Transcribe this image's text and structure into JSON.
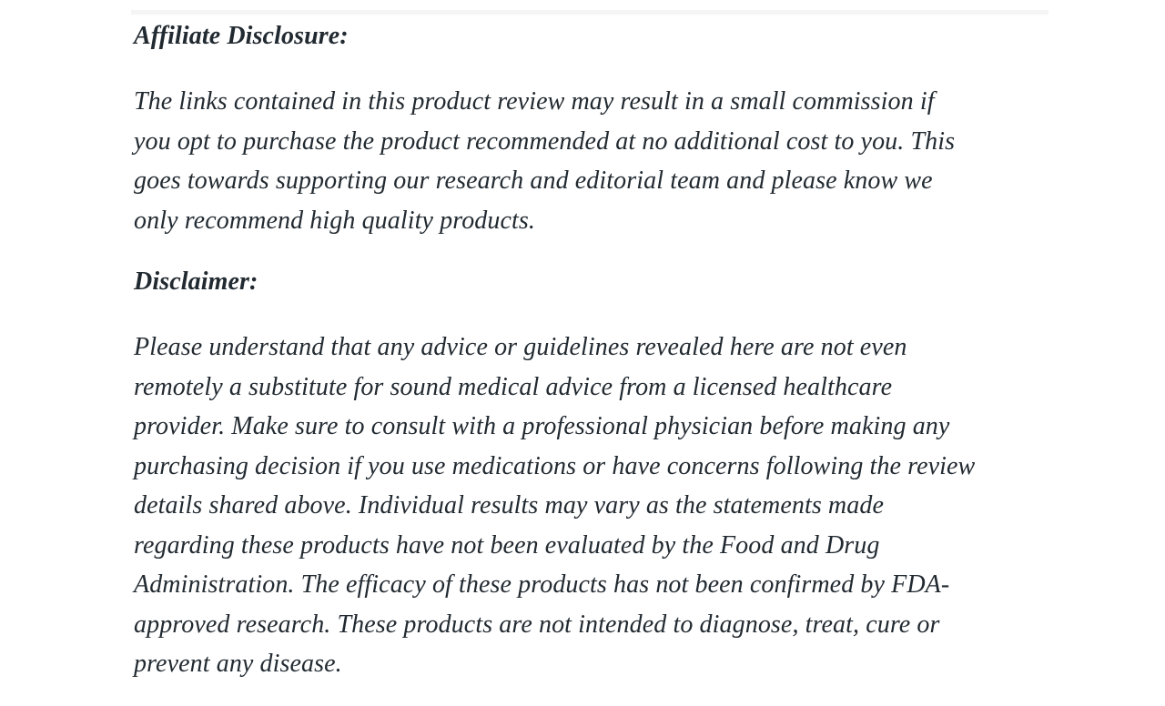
{
  "page": {
    "background_color": "#ffffff",
    "text_color": "#222a31",
    "top_divider_color": "#f5f5f5"
  },
  "article": {
    "affiliate": {
      "heading": "Affiliate Disclosure:",
      "body": "The links contained in this product review may result in a small commission if\nyou opt to purchase the product recommended at no additional cost to you. This\ngoes towards supporting our research and editorial team and please know we\nonly recommend high quality products."
    },
    "disclaimer": {
      "heading": "Disclaimer:",
      "body": "Please understand that any advice or guidelines revealed here are not even\nremotely a substitute for sound medical advice from a licensed healthcare\nprovider. Make sure to consult with a professional physician before making any\npurchasing decision if you use medications or have concerns following the review\ndetails shared above. Individual results may vary as the statements made\nregarding these products have not been evaluated by the Food and Drug\nAdministration. The efficacy of these products has not been confirmed by FDA-\napproved research. These products are not intended to diagnose, treat, cure or\nprevent any disease."
    }
  }
}
